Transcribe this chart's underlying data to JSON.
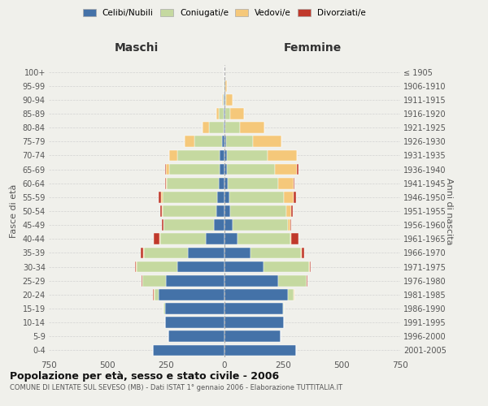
{
  "age_groups": [
    "0-4",
    "5-9",
    "10-14",
    "15-19",
    "20-24",
    "25-29",
    "30-34",
    "35-39",
    "40-44",
    "45-49",
    "50-54",
    "55-59",
    "60-64",
    "65-69",
    "70-74",
    "75-79",
    "80-84",
    "85-89",
    "90-94",
    "95-99",
    "100+"
  ],
  "birth_years": [
    "2001-2005",
    "1996-2000",
    "1991-1995",
    "1986-1990",
    "1981-1985",
    "1976-1980",
    "1971-1975",
    "1966-1970",
    "1961-1965",
    "1956-1960",
    "1951-1955",
    "1946-1950",
    "1941-1945",
    "1936-1940",
    "1931-1935",
    "1926-1930",
    "1921-1925",
    "1916-1920",
    "1911-1915",
    "1906-1910",
    "≤ 1905"
  ],
  "males": {
    "celibi": [
      305,
      240,
      255,
      255,
      280,
      250,
      200,
      155,
      80,
      45,
      35,
      30,
      25,
      20,
      20,
      10,
      5,
      3,
      2,
      1,
      0
    ],
    "coniugati": [
      0,
      0,
      0,
      5,
      20,
      100,
      175,
      190,
      195,
      215,
      230,
      235,
      220,
      215,
      180,
      120,
      60,
      20,
      5,
      2,
      0
    ],
    "vedovi": [
      0,
      0,
      0,
      0,
      2,
      2,
      2,
      2,
      2,
      2,
      3,
      5,
      5,
      15,
      35,
      40,
      30,
      10,
      2,
      0,
      0
    ],
    "divorziati": [
      0,
      0,
      0,
      0,
      2,
      3,
      5,
      10,
      25,
      5,
      5,
      10,
      5,
      5,
      0,
      0,
      0,
      0,
      0,
      0,
      0
    ]
  },
  "females": {
    "nubili": [
      305,
      240,
      255,
      250,
      270,
      230,
      165,
      110,
      55,
      35,
      25,
      20,
      15,
      10,
      10,
      8,
      5,
      5,
      3,
      2,
      0
    ],
    "coniugate": [
      0,
      0,
      0,
      5,
      25,
      120,
      195,
      215,
      225,
      235,
      240,
      235,
      215,
      205,
      175,
      115,
      60,
      20,
      5,
      2,
      0
    ],
    "vedove": [
      0,
      0,
      0,
      0,
      2,
      2,
      3,
      5,
      5,
      10,
      20,
      40,
      65,
      95,
      125,
      120,
      105,
      60,
      25,
      5,
      0
    ],
    "divorziate": [
      0,
      0,
      0,
      0,
      0,
      3,
      5,
      10,
      30,
      5,
      5,
      12,
      5,
      5,
      0,
      0,
      0,
      0,
      0,
      0,
      0
    ]
  },
  "colors": {
    "celibi": "#4472a8",
    "coniugati": "#c5d9a0",
    "vedovi": "#f5c87a",
    "divorziati": "#c0392b"
  },
  "title": "Popolazione per età, sesso e stato civile - 2006",
  "subtitle": "COMUNE DI LENTATE SUL SEVESO (MB) - Dati ISTAT 1° gennaio 2006 - Elaborazione TUTTITALIA.IT",
  "ylabel_left": "Fasce di età",
  "ylabel_right": "Anni di nascita",
  "xlim": 750,
  "background_color": "#f0f0eb"
}
